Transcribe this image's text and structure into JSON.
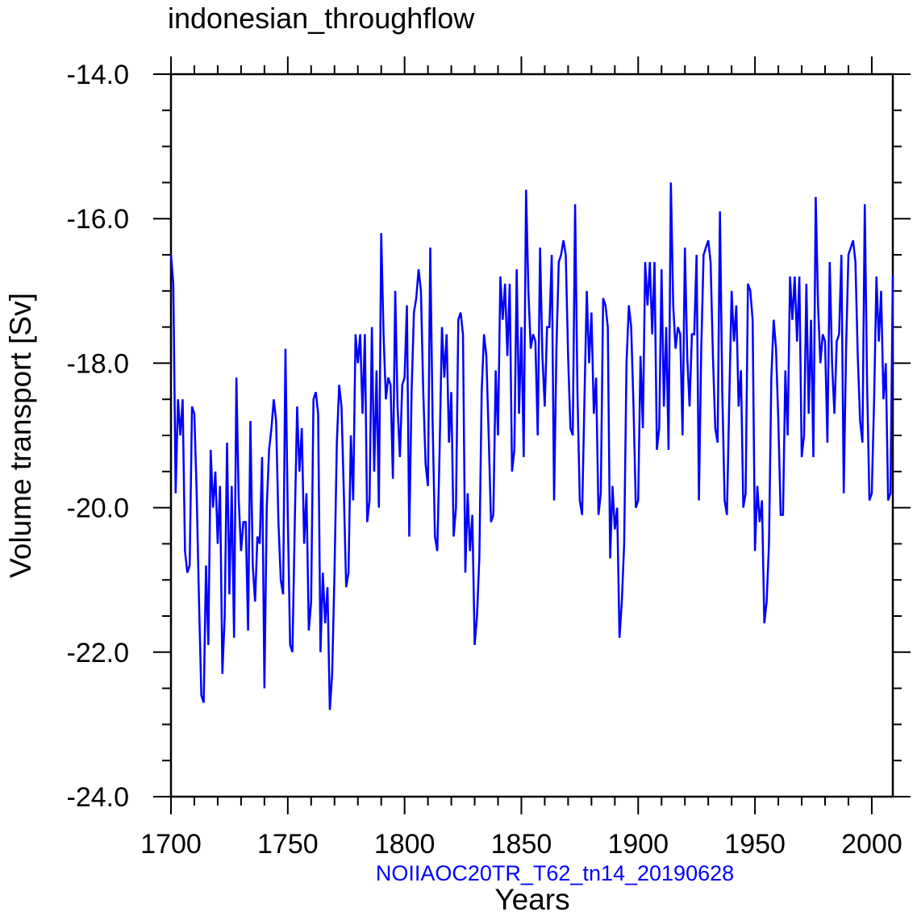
{
  "chart_data": {
    "type": "line",
    "title": "indonesian_throughflow",
    "xlabel": "Years",
    "ylabel": "Volume transport [Sv]",
    "source_label": "NOIIAOC20TR_T62_tn14_20190628",
    "xlim": [
      1700,
      2009
    ],
    "ylim": [
      -24.0,
      -14.0
    ],
    "x_ticks": [
      1700,
      1750,
      1800,
      1850,
      1900,
      1950,
      2000
    ],
    "x_tick_labels": [
      "1700",
      "1750",
      "1800",
      "1850",
      "1900",
      "1950",
      "2000"
    ],
    "y_ticks": [
      -14.0,
      -16.0,
      -18.0,
      -20.0,
      -22.0,
      -24.0
    ],
    "y_tick_labels": [
      "-14.0",
      "-16.0",
      "-18.0",
      "-20.0",
      "-22.0",
      "-24.0"
    ],
    "grid": false,
    "line_color": "#0000ff",
    "source_color": "#0000ff",
    "series": [
      {
        "x_start": 1700,
        "x_step": 1,
        "values": [
          -16.5,
          -16.9,
          -19.8,
          -18.5,
          -19.0,
          -18.5,
          -20.6,
          -20.9,
          -20.8,
          -18.6,
          -18.7,
          -19.8,
          -21.3,
          -22.6,
          -22.7,
          -20.8,
          -21.9,
          -19.2,
          -20.0,
          -19.5,
          -20.5,
          -19.7,
          -22.3,
          -21.5,
          -19.1,
          -21.2,
          -19.7,
          -21.8,
          -18.2,
          -19.9,
          -20.6,
          -20.2,
          -20.2,
          -21.7,
          -18.8,
          -20.8,
          -21.3,
          -20.4,
          -20.5,
          -19.3,
          -22.5,
          -20.0,
          -19.2,
          -18.9,
          -18.5,
          -18.8,
          -20.2,
          -21.0,
          -21.2,
          -17.8,
          -20.1,
          -21.9,
          -22.0,
          -20.2,
          -18.6,
          -19.5,
          -18.9,
          -20.5,
          -19.8,
          -21.7,
          -21.3,
          -18.5,
          -18.4,
          -18.7,
          -22.0,
          -20.9,
          -21.6,
          -21.1,
          -22.8,
          -22.3,
          -20.9,
          -19.1,
          -18.3,
          -18.6,
          -19.8,
          -21.1,
          -20.9,
          -19.0,
          -19.9,
          -17.6,
          -18.0,
          -17.6,
          -18.7,
          -17.6,
          -20.2,
          -19.9,
          -17.5,
          -19.5,
          -18.1,
          -20.0,
          -16.2,
          -17.6,
          -18.5,
          -18.2,
          -18.3,
          -19.6,
          -17.0,
          -18.6,
          -19.3,
          -18.3,
          -18.2,
          -17.2,
          -20.4,
          -18.4,
          -17.3,
          -17.1,
          -16.7,
          -17.0,
          -18.4,
          -19.4,
          -19.7,
          -16.4,
          -18.8,
          -20.4,
          -20.6,
          -19.2,
          -17.5,
          -18.2,
          -17.6,
          -19.1,
          -18.4,
          -20.4,
          -20.0,
          -17.4,
          -17.3,
          -17.6,
          -20.9,
          -19.8,
          -20.6,
          -20.1,
          -21.9,
          -21.5,
          -20.7,
          -18.4,
          -17.6,
          -17.9,
          -19.0,
          -20.2,
          -20.1,
          -18.1,
          -19.0,
          -16.8,
          -17.4,
          -16.9,
          -17.9,
          -16.9,
          -19.5,
          -19.2,
          -16.7,
          -18.7,
          -17.5,
          -19.3,
          -15.6,
          -17.0,
          -17.8,
          -17.6,
          -17.7,
          -19.0,
          -16.4,
          -17.9,
          -18.6,
          -17.5,
          -17.5,
          -16.5,
          -19.9,
          -17.8,
          -16.6,
          -16.5,
          -16.3,
          -16.5,
          -17.9,
          -18.9,
          -19.0,
          -15.8,
          -18.4,
          -19.9,
          -20.1,
          -18.5,
          -17.0,
          -18.0,
          -17.3,
          -18.7,
          -18.2,
          -20.1,
          -19.8,
          -17.1,
          -17.2,
          -17.5,
          -20.7,
          -19.7,
          -20.3,
          -20.0,
          -21.8,
          -21.3,
          -20.5,
          -18.0,
          -17.2,
          -17.5,
          -18.6,
          -20.0,
          -19.9,
          -17.9,
          -18.9,
          -16.6,
          -17.2,
          -16.6,
          -17.6,
          -16.6,
          -19.2,
          -18.9,
          -16.7,
          -18.6,
          -17.5,
          -19.2,
          -15.5,
          -17.2,
          -17.8,
          -17.5,
          -17.6,
          -19.0,
          -16.4,
          -17.9,
          -18.6,
          -17.6,
          -17.6,
          -16.5,
          -19.9,
          -17.8,
          -16.5,
          -16.4,
          -16.3,
          -16.6,
          -17.9,
          -18.9,
          -19.1,
          -15.9,
          -18.4,
          -19.9,
          -20.1,
          -18.5,
          -17.0,
          -17.7,
          -17.2,
          -18.6,
          -18.1,
          -20.0,
          -19.8,
          -16.9,
          -17.0,
          -17.4,
          -20.6,
          -19.7,
          -20.2,
          -19.9,
          -21.6,
          -21.3,
          -20.5,
          -18.2,
          -17.4,
          -17.8,
          -18.8,
          -20.1,
          -20.1,
          -18.1,
          -19.0,
          -16.8,
          -17.4,
          -16.8,
          -17.7,
          -16.8,
          -19.3,
          -19.0,
          -16.9,
          -18.7,
          -17.4,
          -19.3,
          -15.7,
          -17.2,
          -18.0,
          -17.6,
          -17.7,
          -19.1,
          -16.6,
          -18.0,
          -18.7,
          -17.7,
          -17.6,
          -16.5,
          -19.8,
          -17.8,
          -16.5,
          -16.4,
          -16.3,
          -16.6,
          -17.9,
          -18.8,
          -19.1,
          -15.8,
          -18.3,
          -19.9,
          -19.8,
          -18.5,
          -16.8,
          -17.7,
          -17.0,
          -18.5,
          -18.0,
          -19.9,
          -19.8,
          -16.8
        ]
      }
    ]
  }
}
